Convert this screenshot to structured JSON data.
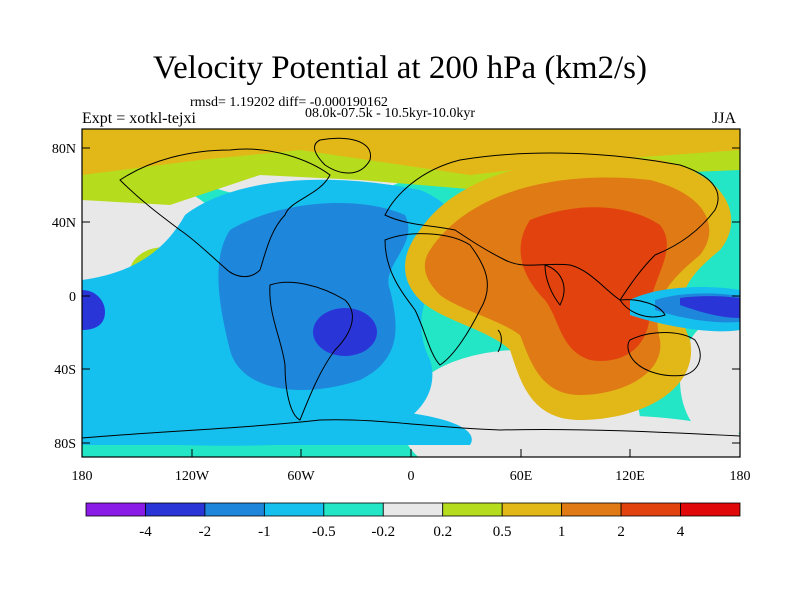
{
  "title": "Velocity Potential at 200 hPa (km2/s)",
  "stats_line": "rmsd= 1.19202 diff= -0.000190162",
  "period_line": "08.0k-07.5k - 10.5kyr-10.0kyr",
  "experiment_label": "Expt = xotkl-tejxi",
  "season_label": "JJA",
  "y_axis": {
    "ticks": [
      "80N",
      "40N",
      "0",
      "40S",
      "80S"
    ],
    "lats": [
      80,
      40,
      0,
      -40,
      -80
    ]
  },
  "x_axis": {
    "ticks": [
      "180",
      "120W",
      "60W",
      "0",
      "60E",
      "120E",
      "180"
    ],
    "lons": [
      -180,
      -120,
      -60,
      0,
      60,
      120,
      180
    ]
  },
  "colorbar": {
    "labels": [
      "-4",
      "-2",
      "-1",
      "-0.5",
      "-0.2",
      "0.2",
      "0.5",
      "1",
      "2",
      "4"
    ],
    "colors": [
      "#8a1be6",
      "#2a35d8",
      "#1e87dc",
      "#16c0ee",
      "#22e6c6",
      "#e8e8e8",
      "#b6dc1e",
      "#e2b818",
      "#e07a14",
      "#e2420e",
      "#e00808"
    ]
  },
  "colors": {
    "land_outline": "#000000",
    "background": "#ffffff"
  }
}
